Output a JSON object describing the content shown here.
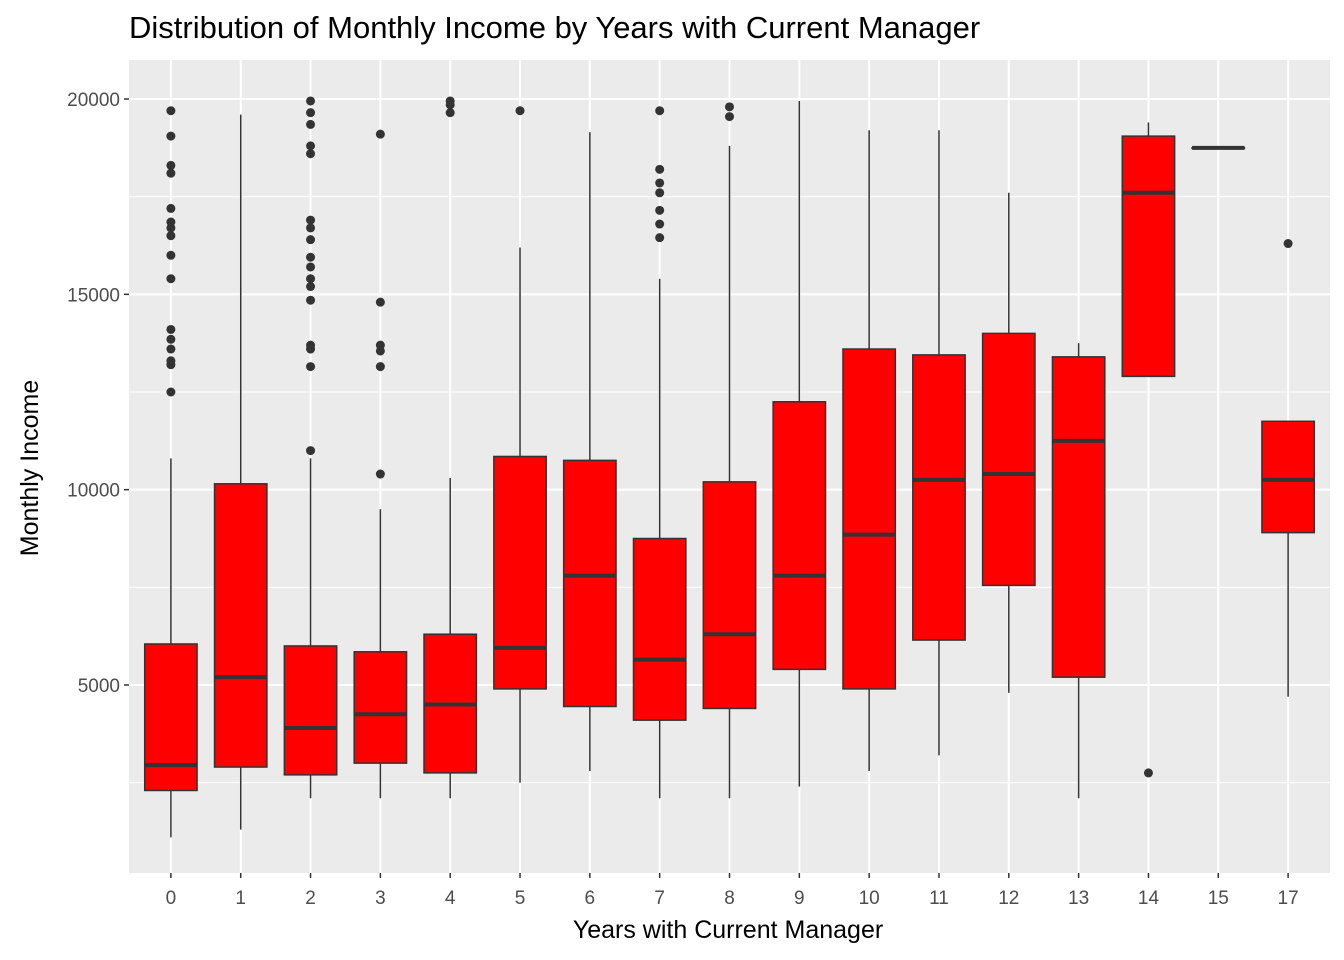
{
  "chart_data": {
    "type": "boxplot",
    "title": "Distribution of Monthly Income by Years with Current Manager",
    "xlabel": "Years with Current Manager",
    "ylabel": "Monthly Income",
    "categories": [
      "0",
      "1",
      "2",
      "3",
      "4",
      "5",
      "6",
      "7",
      "8",
      "9",
      "10",
      "11",
      "12",
      "13",
      "14",
      "15",
      "17"
    ],
    "ylim": [
      100,
      20700
    ],
    "yticks": [
      5000,
      10000,
      15000,
      20000
    ],
    "grid": true,
    "legend": "none",
    "colors": {
      "fill": "#ff0000",
      "line": "#333333",
      "panel": "#ebebeb",
      "grid": "#ffffff",
      "text": "#4d4d4d"
    },
    "boxes": [
      {
        "category": "0",
        "whisker_low": 1100,
        "q1": 2300,
        "median": 2950,
        "q3": 6050,
        "whisker_high": 10800,
        "outliers": [
          12500,
          13200,
          13300,
          13600,
          13850,
          14100,
          15400,
          16000,
          16500,
          16700,
          16850,
          17200,
          18100,
          18300,
          19050,
          19700
        ]
      },
      {
        "category": "1",
        "whisker_low": 1300,
        "q1": 2900,
        "median": 5200,
        "q3": 10150,
        "whisker_high": 19600,
        "outliers": []
      },
      {
        "category": "2",
        "whisker_low": 2100,
        "q1": 2700,
        "median": 3900,
        "q3": 6000,
        "whisker_high": 10800,
        "outliers": [
          11000,
          13150,
          13600,
          13700,
          14850,
          15200,
          15400,
          15700,
          15950,
          16400,
          16700,
          16900,
          18600,
          18800,
          19350,
          19650,
          19950
        ]
      },
      {
        "category": "3",
        "whisker_low": 2100,
        "q1": 3000,
        "median": 4250,
        "q3": 5850,
        "whisker_high": 9500,
        "outliers": [
          10400,
          13150,
          13550,
          13700,
          14800,
          19100
        ]
      },
      {
        "category": "4",
        "whisker_low": 2100,
        "q1": 2750,
        "median": 4500,
        "q3": 6300,
        "whisker_high": 10300,
        "outliers": [
          19650,
          19850,
          19950
        ]
      },
      {
        "category": "5",
        "whisker_low": 2500,
        "q1": 4900,
        "median": 5950,
        "q3": 10850,
        "whisker_high": 16200,
        "outliers": [
          19700
        ]
      },
      {
        "category": "6",
        "whisker_low": 2800,
        "q1": 4450,
        "median": 7800,
        "q3": 10750,
        "whisker_high": 19150,
        "outliers": []
      },
      {
        "category": "7",
        "whisker_low": 2100,
        "q1": 4100,
        "median": 5650,
        "q3": 8750,
        "whisker_high": 15400,
        "outliers": [
          16450,
          16800,
          17150,
          17600,
          17850,
          18200,
          19700
        ]
      },
      {
        "category": "8",
        "whisker_low": 2100,
        "q1": 4400,
        "median": 6300,
        "q3": 10200,
        "whisker_high": 18800,
        "outliers": [
          19550,
          19800
        ]
      },
      {
        "category": "9",
        "whisker_low": 2400,
        "q1": 5400,
        "median": 7800,
        "q3": 12250,
        "whisker_high": 19950,
        "outliers": []
      },
      {
        "category": "10",
        "whisker_low": 2800,
        "q1": 4900,
        "median": 8850,
        "q3": 13600,
        "whisker_high": 19200,
        "outliers": []
      },
      {
        "category": "11",
        "whisker_low": 3200,
        "q1": 6150,
        "median": 10250,
        "q3": 13450,
        "whisker_high": 19200,
        "outliers": []
      },
      {
        "category": "12",
        "whisker_low": 4800,
        "q1": 7550,
        "median": 10400,
        "q3": 14000,
        "whisker_high": 17600,
        "outliers": []
      },
      {
        "category": "13",
        "whisker_low": 2100,
        "q1": 5200,
        "median": 11250,
        "q3": 13400,
        "whisker_high": 13750,
        "outliers": []
      },
      {
        "category": "14",
        "whisker_low": 12900,
        "q1": 12900,
        "median": 17600,
        "q3": 19050,
        "whisker_high": 19400,
        "outliers": [
          2750
        ]
      },
      {
        "category": "15",
        "whisker_low": 18750,
        "q1": 18750,
        "median": 18750,
        "q3": 18750,
        "whisker_high": 18750,
        "outliers": []
      },
      {
        "category": "17",
        "whisker_low": 4700,
        "q1": 8900,
        "median": 10250,
        "q3": 11750,
        "whisker_high": 11750,
        "outliers": [
          16300
        ]
      }
    ]
  }
}
